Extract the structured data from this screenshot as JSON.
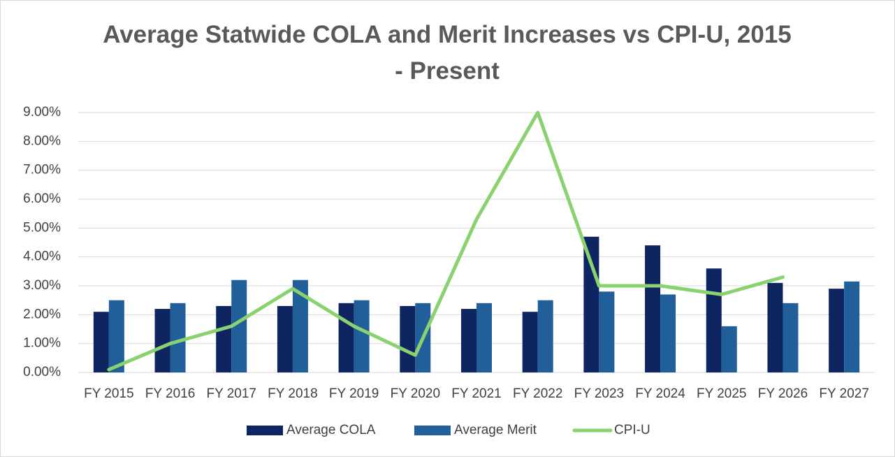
{
  "chart_data": {
    "type": "bar_line",
    "title": "Average Statwide COLA and Merit Increases vs CPI-U, 2015 - Present",
    "categories": [
      "FY 2015",
      "FY 2016",
      "FY 2017",
      "FY 2018",
      "FY 2019",
      "FY 2020",
      "FY 2021",
      "FY 2022",
      "FY 2023",
      "FY 2024",
      "FY 2025",
      "FY 2026",
      "FY 2027"
    ],
    "series": [
      {
        "name": "Average COLA",
        "type": "bar",
        "color": "#0e2562",
        "values": [
          2.1,
          2.2,
          2.3,
          2.3,
          2.4,
          2.3,
          2.2,
          2.1,
          4.7,
          4.4,
          3.6,
          3.1,
          2.9
        ]
      },
      {
        "name": "Average Merit",
        "type": "bar",
        "color": "#215f9a",
        "values": [
          2.5,
          2.4,
          3.2,
          3.2,
          2.5,
          2.4,
          2.4,
          2.5,
          2.8,
          2.7,
          1.6,
          2.4,
          3.15
        ]
      },
      {
        "name": "CPI-U",
        "type": "line",
        "color": "#8ad26f",
        "values": [
          0.1,
          1.0,
          1.6,
          2.9,
          1.6,
          0.6,
          5.3,
          9.0,
          3.0,
          3.0,
          2.7,
          3.3,
          null
        ]
      }
    ],
    "ylim": [
      0,
      9
    ],
    "yticks": [
      {
        "value": 0,
        "label": "0.00%"
      },
      {
        "value": 1,
        "label": "1.00%"
      },
      {
        "value": 2,
        "label": "2.00%"
      },
      {
        "value": 3,
        "label": "3.00%"
      },
      {
        "value": 4,
        "label": "4.00%"
      },
      {
        "value": 5,
        "label": "5.00%"
      },
      {
        "value": 6,
        "label": "6.00%"
      },
      {
        "value": 7,
        "label": "7.00%"
      },
      {
        "value": 8,
        "label": "8.00%"
      },
      {
        "value": 9,
        "label": "9.00%"
      }
    ],
    "grid": true,
    "legend": "bottom"
  }
}
